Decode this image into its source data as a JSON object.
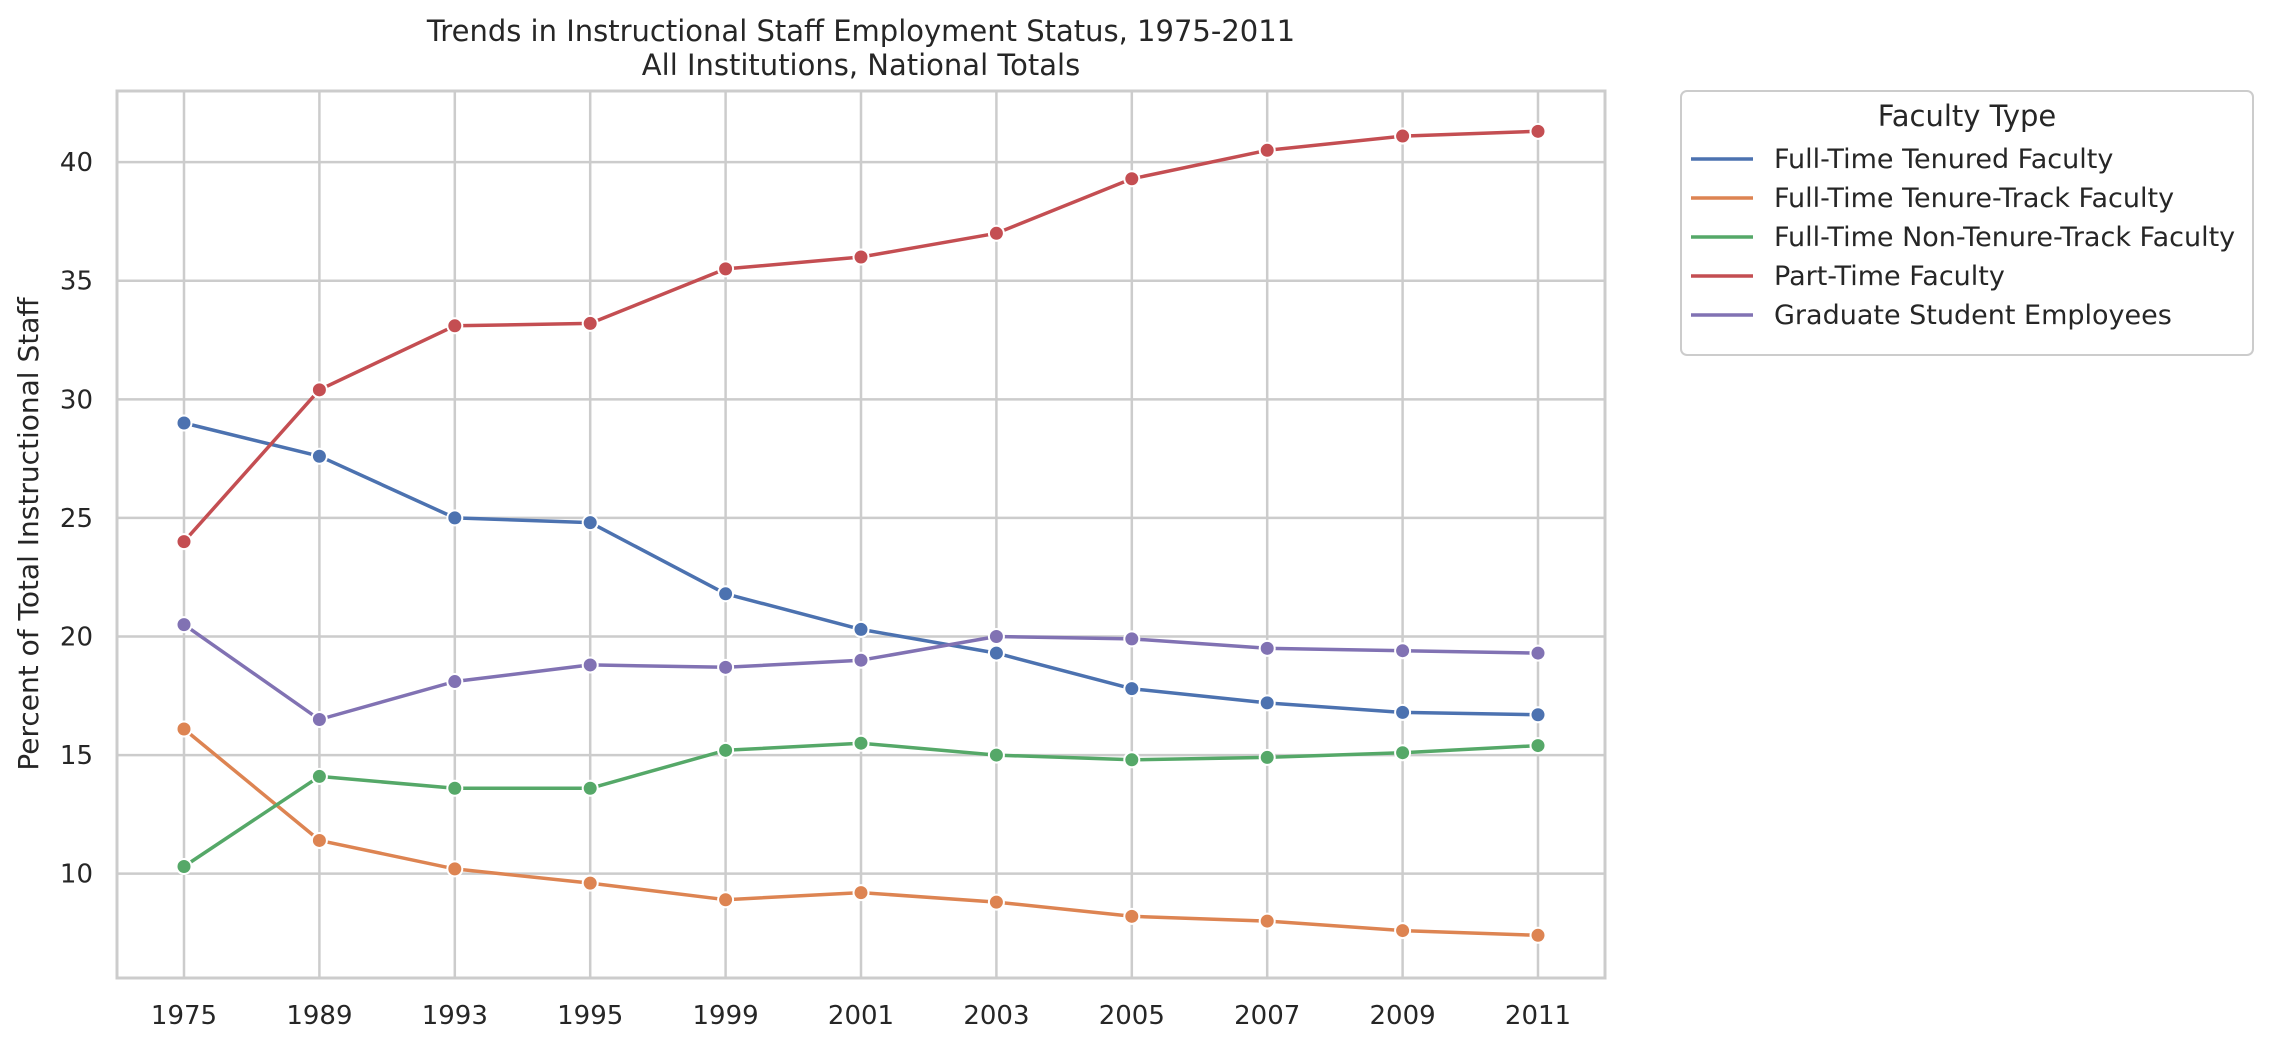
{
  "chart_data": {
    "type": "line",
    "title": "Trends in Instructional Staff Employment Status, 1975-2011",
    "subtitle": "All Institutions, National Totals",
    "xlabel": "",
    "ylabel": "Percent of Total Instructional Staff",
    "categories": [
      "1975",
      "1989",
      "1993",
      "1995",
      "1999",
      "2001",
      "2003",
      "2005",
      "2007",
      "2009",
      "2011"
    ],
    "ylim": [
      5.6,
      43.0
    ],
    "yticks": [
      10,
      15,
      20,
      25,
      30,
      35,
      40
    ],
    "grid": true,
    "legend": {
      "title": "Faculty Type",
      "placement": "outside-top-right"
    },
    "series": [
      {
        "name": "Full-Time Tenured Faculty",
        "color": "#4c72b0",
        "values": [
          29.0,
          27.6,
          25.0,
          24.8,
          21.8,
          20.3,
          19.3,
          17.8,
          17.2,
          16.8,
          16.7
        ]
      },
      {
        "name": "Full-Time Tenure-Track Faculty",
        "color": "#dd8452",
        "values": [
          16.1,
          11.4,
          10.2,
          9.6,
          8.9,
          9.2,
          8.8,
          8.2,
          8.0,
          7.6,
          7.4
        ]
      },
      {
        "name": "Full-Time Non-Tenure-Track Faculty",
        "color": "#55a868",
        "values": [
          10.3,
          14.1,
          13.6,
          13.6,
          15.2,
          15.5,
          15.0,
          14.8,
          14.9,
          15.1,
          15.4
        ]
      },
      {
        "name": "Part-Time Faculty",
        "color": "#c44e52",
        "values": [
          24.0,
          30.4,
          33.1,
          33.2,
          35.5,
          36.0,
          37.0,
          39.3,
          40.5,
          41.1,
          41.3
        ]
      },
      {
        "name": "Graduate Student Employees",
        "color": "#8172b3",
        "values": [
          20.5,
          16.5,
          18.1,
          18.8,
          18.7,
          19.0,
          20.0,
          19.9,
          19.5,
          19.4,
          19.3
        ]
      }
    ]
  }
}
